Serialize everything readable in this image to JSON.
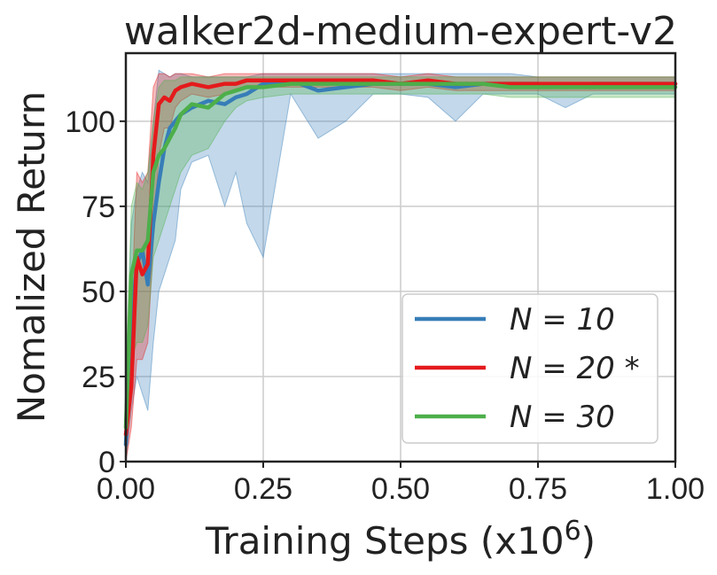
{
  "chart_data": {
    "type": "line",
    "title": "walker2d-medium-expert-v2",
    "xlabel": "Training Steps (x10",
    "xlabel_exp": "6",
    "xlabel_close": ")",
    "ylabel": "Nomalized Return",
    "xlim": [
      0.0,
      1.0
    ],
    "ylim": [
      0,
      120
    ],
    "xticks": [
      0.0,
      0.25,
      0.5,
      0.75,
      1.0
    ],
    "xtick_labels": [
      "0.00",
      "0.25",
      "0.50",
      "0.75",
      "1.00"
    ],
    "yticks": [
      0,
      25,
      50,
      75,
      100
    ],
    "ytick_labels": [
      "0",
      "25",
      "50",
      "75",
      "100"
    ],
    "grid": true,
    "legend_position": "lower-right",
    "x": [
      0.0,
      0.01,
      0.02,
      0.03,
      0.04,
      0.05,
      0.06,
      0.07,
      0.08,
      0.09,
      0.1,
      0.12,
      0.15,
      0.18,
      0.2,
      0.22,
      0.25,
      0.3,
      0.35,
      0.4,
      0.45,
      0.5,
      0.55,
      0.6,
      0.65,
      0.7,
      0.75,
      0.8,
      0.85,
      0.9,
      0.95,
      1.0
    ],
    "series": [
      {
        "name": "N = 10",
        "color": "#377eb8",
        "values": [
          5,
          40,
          58,
          62,
          52,
          70,
          82,
          92,
          98,
          100,
          102,
          104,
          106,
          105,
          107,
          108,
          111,
          112,
          109,
          110,
          111,
          111,
          111,
          110,
          111,
          111,
          111,
          110,
          111,
          111,
          111,
          111
        ],
        "lower": [
          0,
          15,
          25,
          20,
          15,
          35,
          50,
          55,
          60,
          65,
          80,
          88,
          90,
          75,
          85,
          70,
          60,
          108,
          95,
          100,
          108,
          108,
          107,
          100,
          108,
          108,
          108,
          104,
          108,
          108,
          108,
          108
        ],
        "upper": [
          15,
          70,
          80,
          85,
          82,
          100,
          115,
          114,
          113,
          114,
          114,
          113,
          113,
          113,
          113,
          113,
          114,
          114,
          114,
          114,
          114,
          114,
          114,
          114,
          114,
          114,
          113,
          113,
          113,
          113,
          113,
          113
        ]
      },
      {
        "name": "N = 20 *",
        "color": "#e41a1c",
        "values": [
          8,
          22,
          60,
          55,
          58,
          90,
          105,
          107,
          106,
          109,
          110,
          111,
          110,
          111,
          111,
          112,
          112,
          112,
          112,
          112,
          112,
          111,
          112,
          111,
          111,
          111,
          111,
          111,
          111,
          111,
          111,
          111
        ],
        "lower": [
          0,
          10,
          30,
          30,
          35,
          65,
          90,
          98,
          98,
          104,
          106,
          108,
          107,
          108,
          109,
          110,
          110,
          110,
          110,
          110,
          110,
          109,
          110,
          109,
          109,
          109,
          109,
          109,
          109,
          109,
          109,
          109
        ],
        "upper": [
          20,
          45,
          85,
          82,
          85,
          110,
          114,
          114,
          113,
          114,
          114,
          114,
          113,
          114,
          114,
          114,
          114,
          114,
          114,
          114,
          114,
          113,
          114,
          113,
          113,
          113,
          113,
          113,
          113,
          113,
          113,
          113
        ]
      },
      {
        "name": "N = 30",
        "color": "#4daf4a",
        "values": [
          10,
          55,
          62,
          62,
          65,
          85,
          90,
          92,
          95,
          98,
          102,
          105,
          104,
          108,
          109,
          110,
          110,
          111,
          111,
          111,
          111,
          111,
          111,
          111,
          111,
          110,
          110,
          110,
          110,
          110,
          110,
          110
        ],
        "lower": [
          0,
          30,
          35,
          35,
          40,
          60,
          65,
          70,
          75,
          80,
          85,
          90,
          92,
          100,
          104,
          106,
          107,
          108,
          108,
          108,
          108,
          108,
          108,
          108,
          108,
          107,
          107,
          107,
          107,
          107,
          107,
          107
        ],
        "upper": [
          25,
          75,
          82,
          80,
          85,
          100,
          110,
          112,
          112,
          112,
          113,
          113,
          113,
          113,
          113,
          113,
          113,
          113,
          113,
          113,
          113,
          113,
          113,
          113,
          113,
          113,
          113,
          113,
          113,
          113,
          113,
          113
        ]
      }
    ]
  }
}
